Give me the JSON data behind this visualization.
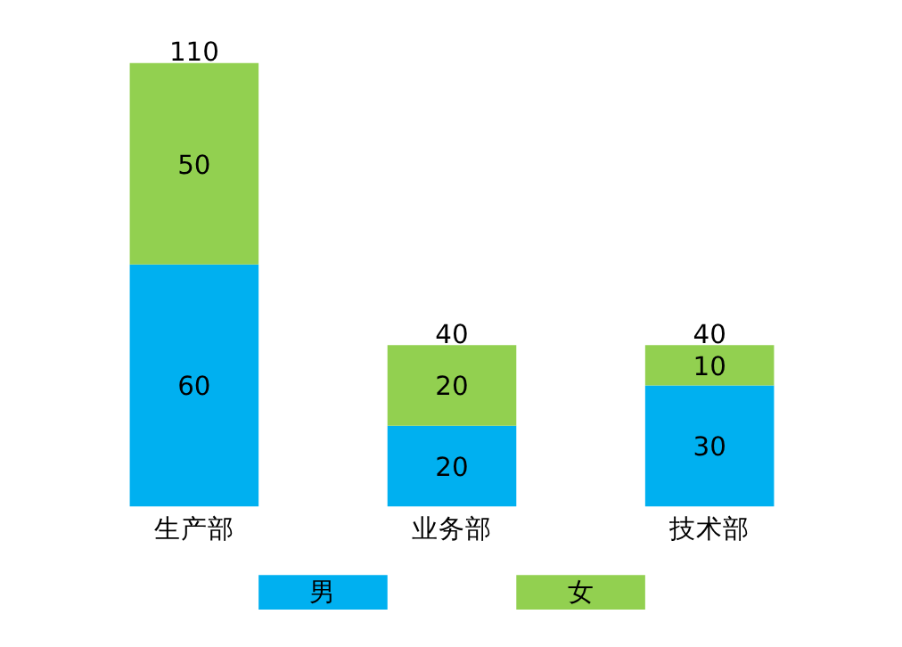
{
  "chart_data": {
    "type": "bar",
    "stacked": true,
    "categories": [
      "生产部",
      "业务部",
      "技术部"
    ],
    "series": [
      {
        "name": "男",
        "color": "#00b0f0",
        "values": [
          60,
          20,
          30
        ]
      },
      {
        "name": "女",
        "color": "#92d050",
        "values": [
          50,
          20,
          10
        ]
      }
    ],
    "data_labels": true,
    "totals": [
      "110",
      "40",
      "40"
    ],
    "legend": "bottom",
    "grid": false
  }
}
